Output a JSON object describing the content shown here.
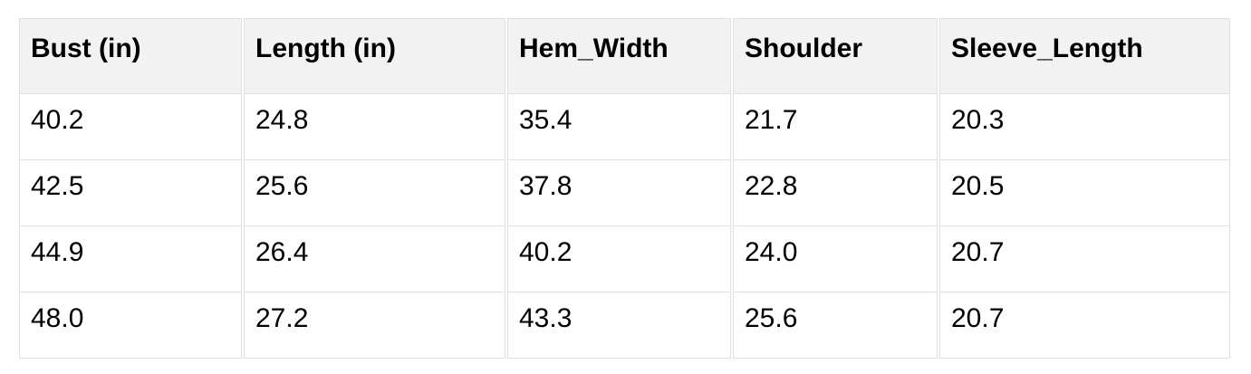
{
  "table": {
    "columns": [
      "Bust (in)",
      "Length (in)",
      "Hem_Width",
      "Shoulder",
      "Sleeve_Length"
    ],
    "rows": [
      [
        "40.2",
        "24.8",
        "35.4",
        "21.7",
        "20.3"
      ],
      [
        "42.5",
        "25.6",
        "37.8",
        "22.8",
        "20.5"
      ],
      [
        "44.9",
        "26.4",
        "40.2",
        "24.0",
        "20.7"
      ],
      [
        "48.0",
        "27.2",
        "43.3",
        "25.6",
        "20.7"
      ]
    ]
  },
  "colors": {
    "header_bg": "#f2f2f2",
    "cell_bg": "#ffffff",
    "border": "#e0e0e0",
    "text": "#000000",
    "page_bg": "#ffffff"
  },
  "chart_data": {
    "type": "table",
    "columns": [
      "Bust (in)",
      "Length (in)",
      "Hem_Width",
      "Shoulder",
      "Sleeve_Length"
    ],
    "rows": [
      [
        40.2,
        24.8,
        35.4,
        21.7,
        20.3
      ],
      [
        42.5,
        25.6,
        37.8,
        22.8,
        20.5
      ],
      [
        44.9,
        26.4,
        40.2,
        24.0,
        20.7
      ],
      [
        48.0,
        27.2,
        43.3,
        25.6,
        20.7
      ]
    ]
  }
}
